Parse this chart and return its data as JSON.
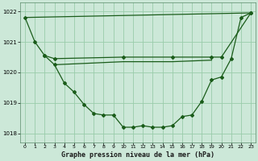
{
  "background_color": "#cce8d8",
  "grid_color": "#99ccaa",
  "line_color": "#1a5c1a",
  "title": "Graphe pression niveau de la mer (hPa)",
  "ylim": [
    1017.7,
    1022.3
  ],
  "yticks": [
    1018,
    1019,
    1020,
    1021,
    1022
  ],
  "xticks": [
    0,
    1,
    2,
    3,
    4,
    5,
    6,
    7,
    8,
    9,
    10,
    11,
    12,
    13,
    14,
    15,
    16,
    17,
    18,
    19,
    20,
    21,
    22,
    23
  ],
  "series": [
    {
      "x": [
        0,
        1,
        2,
        3,
        4,
        5,
        6,
        7,
        8,
        9,
        10,
        11,
        12,
        13,
        14,
        15,
        16,
        17,
        18,
        19,
        20,
        21,
        22,
        23
      ],
      "y": [
        1021.8,
        1021.0,
        1020.55,
        1020.25,
        1019.65,
        1019.35,
        1018.95,
        1018.65,
        1018.6,
        1018.6,
        1018.2,
        1018.2,
        1018.25,
        1018.2,
        1018.2,
        1018.25,
        1018.55,
        1018.6,
        1019.05,
        1019.75,
        1019.85,
        1020.45,
        1021.8,
        1021.95
      ]
    },
    {
      "x": [
        0,
        23
      ],
      "y": [
        1021.8,
        1021.95
      ]
    },
    {
      "x": [
        2,
        3,
        10,
        15,
        19,
        20,
        23
      ],
      "y": [
        1020.55,
        1020.45,
        1020.5,
        1020.5,
        1020.5,
        1020.5,
        1021.95
      ]
    },
    {
      "x": [
        3,
        10,
        15,
        19
      ],
      "y": [
        1020.25,
        1020.35,
        1020.35,
        1020.4
      ]
    }
  ]
}
